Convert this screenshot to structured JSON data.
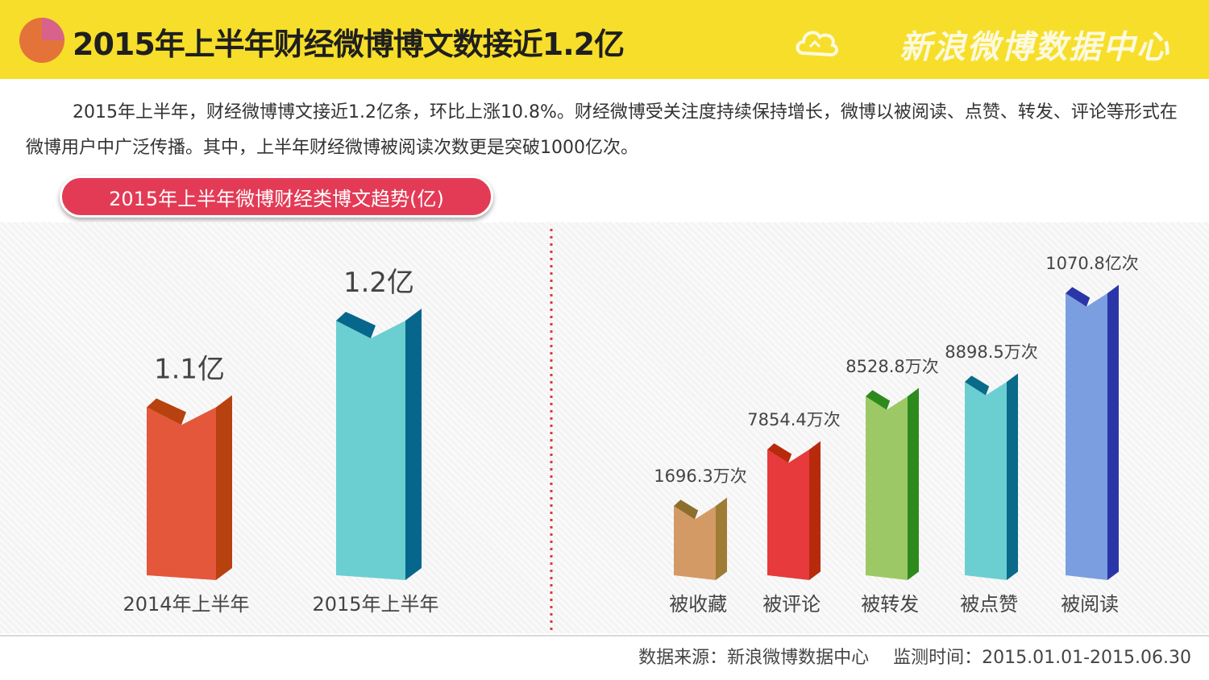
{
  "header": {
    "title": "2015年上半年财经微博博文数接近1.2亿",
    "brand": "新浪微博数据中心"
  },
  "description": "2015年上半年，财经微博博文接近1.2亿条，环比上涨10.8%。财经微博受关注度持续保持增长，微博以被阅读、点赞、转发、评论等形式在微博用户中广泛传播。其中，上半年财经微博被阅读次数更是突破1000亿次。",
  "section_label": "2015年上半年微博财经类博文趋势(亿)",
  "chart_data": [
    {
      "type": "bar",
      "categories": [
        "2014年上半年",
        "2015年上半年"
      ],
      "values": [
        1.1,
        1.2
      ],
      "data_labels": [
        "1.1亿",
        "1.2亿"
      ],
      "colors": [
        {
          "front": "#e4573a",
          "side": "#b8420f",
          "top": "#b8420f"
        },
        {
          "front": "#6bcfd1",
          "side": "#06668c",
          "top": "#06668c"
        }
      ]
    },
    {
      "type": "bar",
      "categories": [
        "被收藏",
        "被评论",
        "被转发",
        "被点赞",
        "被阅读"
      ],
      "values": [
        16963000,
        78544000,
        85288000,
        88985000,
        107080000000
      ],
      "data_labels": [
        "1696.3万次",
        "7854.4万次",
        "8528.8万次",
        "8898.5万次",
        "1070.8亿次"
      ],
      "colors": [
        {
          "front": "#d39a66",
          "side": "#9e7c36",
          "top": "#8e6e2c"
        },
        {
          "front": "#e63a3c",
          "side": "#b82a0c",
          "top": "#b82a0c"
        },
        {
          "front": "#9cc966",
          "side": "#2e8a1c",
          "top": "#2e8a1c"
        },
        {
          "front": "#6bcfd1",
          "side": "#0a6a8a",
          "top": "#0a6a8a"
        },
        {
          "front": "#7b9ee0",
          "side": "#2a36a8",
          "top": "#2a36a8"
        }
      ]
    }
  ],
  "footer": {
    "source": "数据来源：新浪微博数据中心",
    "period": "监测时间：2015.01.01-2015.06.30"
  }
}
